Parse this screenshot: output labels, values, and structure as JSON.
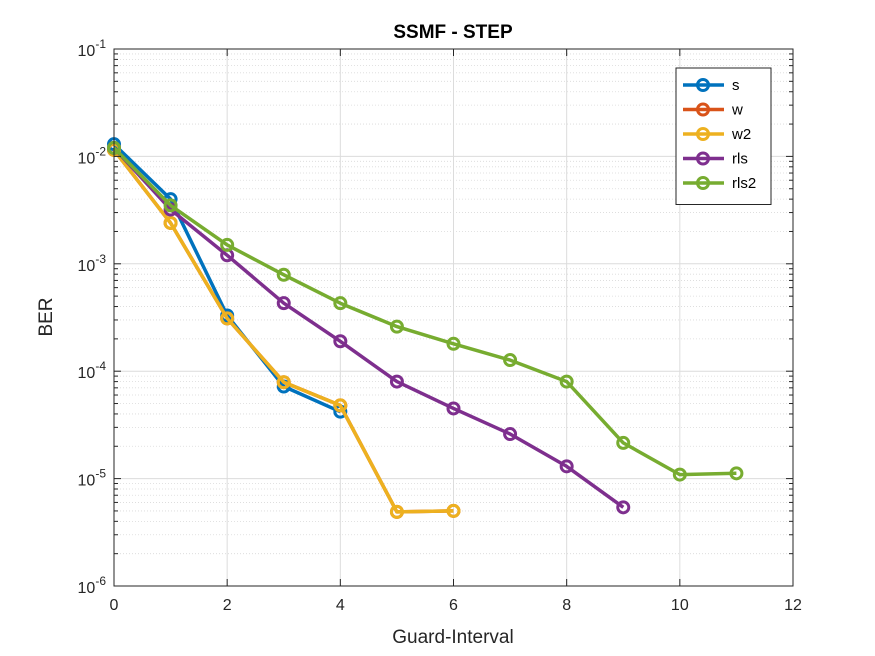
{
  "chart_data": {
    "type": "line",
    "title": "SSMF - STEP",
    "xlabel": "Guard-Interval",
    "ylabel": "BER",
    "xlim": [
      0,
      12
    ],
    "ylim": [
      1e-06,
      0.1
    ],
    "yscale": "log",
    "grid": true,
    "minor_grid": true,
    "legend_position": "top-right",
    "x_ticks": [
      0,
      2,
      4,
      6,
      8,
      10,
      12
    ],
    "x_tick_labels": [
      "0",
      "2",
      "4",
      "6",
      "8",
      "10",
      "12"
    ],
    "y_tick_exponents": [
      -6,
      -5,
      -4,
      -3,
      -2,
      -1
    ],
    "y_tick_base": "10",
    "series": [
      {
        "name": "s",
        "color": "#0072BD",
        "x": [
          0,
          1,
          2,
          3,
          4
        ],
        "y": [
          0.013,
          0.004,
          0.00033,
          7.2e-05,
          4.2e-05
        ]
      },
      {
        "name": "w",
        "color": "#D95319",
        "x": [
          0,
          1,
          2,
          3,
          4,
          5,
          6
        ],
        "y": [
          0.0115,
          0.0024,
          0.00031,
          7.9e-05,
          4.8e-05,
          4.9e-06,
          5e-06
        ]
      },
      {
        "name": "w2",
        "color": "#EDB120",
        "x": [
          0,
          1,
          2,
          3,
          4,
          5,
          6
        ],
        "y": [
          0.0115,
          0.0024,
          0.00031,
          7.9e-05,
          4.8e-05,
          4.9e-06,
          5e-06
        ]
      },
      {
        "name": "rls",
        "color": "#7E2F8E",
        "x": [
          0,
          1,
          2,
          3,
          4,
          5,
          6,
          7,
          8,
          9
        ],
        "y": [
          0.012,
          0.0032,
          0.0012,
          0.00043,
          0.00019,
          8e-05,
          4.5e-05,
          2.6e-05,
          1.3e-05,
          5.4e-06
        ]
      },
      {
        "name": "rls2",
        "color": "#77AC30",
        "x": [
          0,
          1,
          2,
          3,
          4,
          5,
          6,
          7,
          8,
          9,
          10,
          11
        ],
        "y": [
          0.012,
          0.0035,
          0.0015,
          0.00079,
          0.00043,
          0.00026,
          0.00018,
          0.000127,
          8e-05,
          2.15e-05,
          1.09e-05,
          1.12e-05
        ]
      }
    ]
  }
}
